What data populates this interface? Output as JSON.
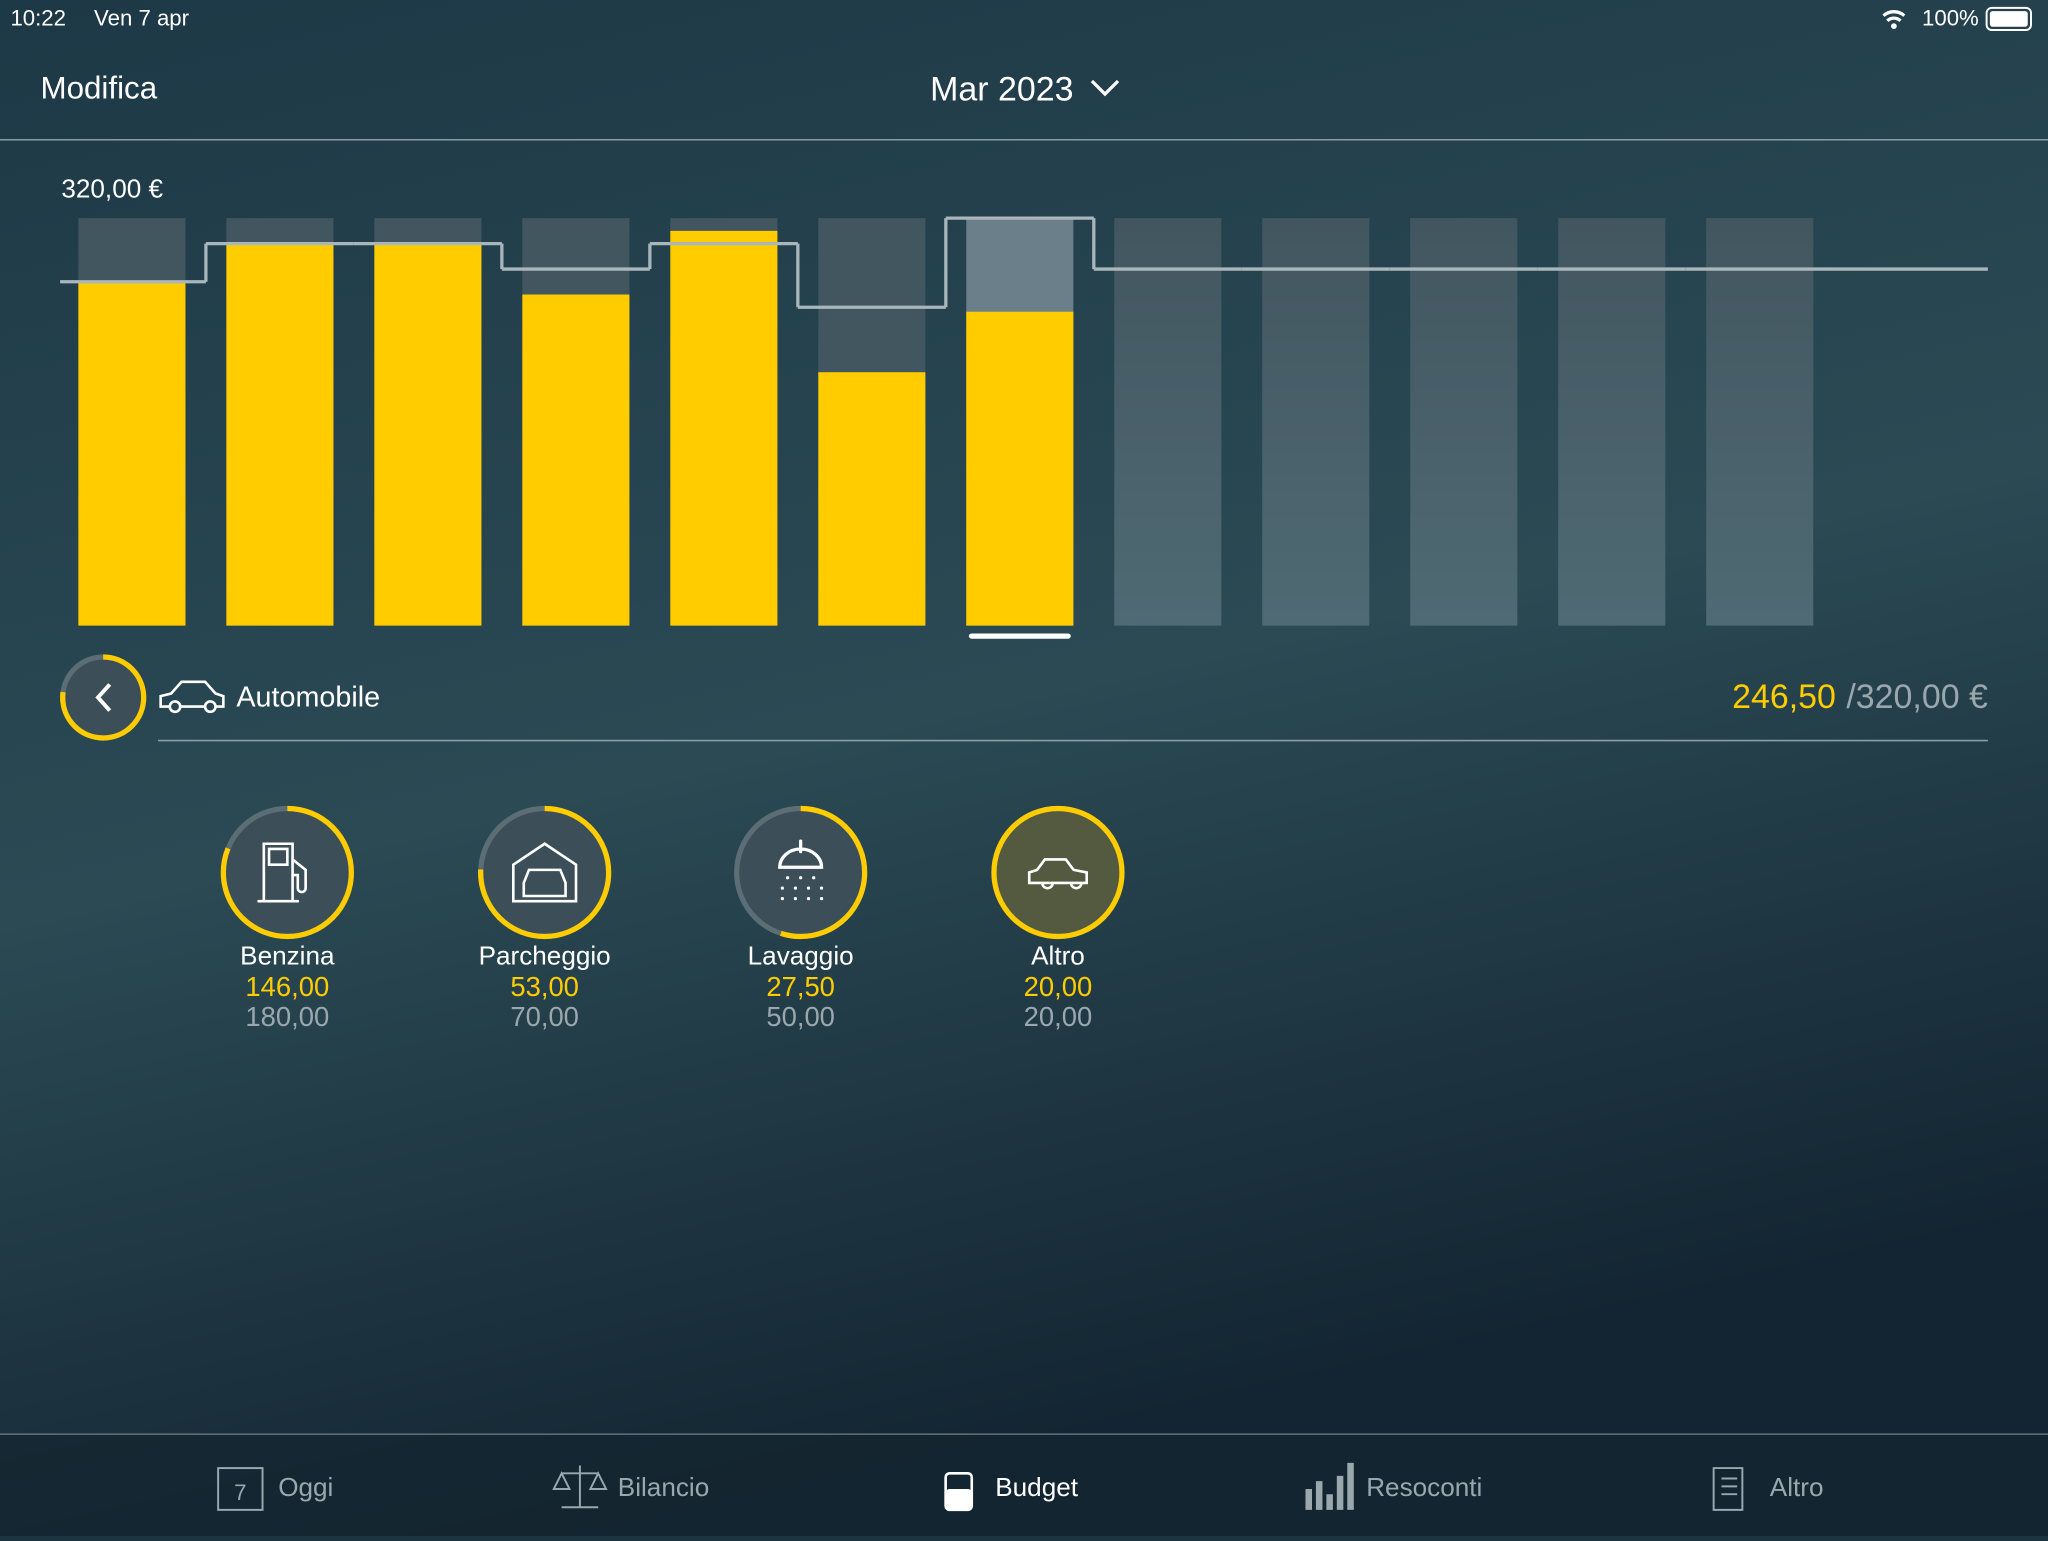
{
  "status_bar": {
    "time": "10:22",
    "date": "Ven 7 apr",
    "battery": "100%"
  },
  "nav": {
    "edit": "Modifica",
    "period": "Mar 2023"
  },
  "chart_data": {
    "type": "bar",
    "categories": [
      null,
      null,
      null,
      null,
      null,
      null,
      null,
      null,
      null,
      null,
      null,
      null
    ],
    "values": [
      270,
      300,
      300,
      260,
      310,
      199,
      246.5,
      null,
      null,
      null,
      null,
      null
    ],
    "budget": [
      270,
      300,
      300,
      280,
      300,
      250,
      320,
      280,
      280,
      280,
      280,
      280
    ],
    "color": "#ffcc00",
    "ylim": [
      0,
      320
    ],
    "yticks": [
      {
        "value": 320,
        "label": "320,00 €"
      }
    ],
    "selected_index": 6
  },
  "category": {
    "name": "Automobile",
    "spent": "246,50",
    "budget": "/320,00 €"
  },
  "subcategories": [
    {
      "name": "Benzina",
      "spent": "146,00",
      "budget": "180,00"
    },
    {
      "name": "Parcheggio",
      "spent": "53,00",
      "budget": "70,00"
    },
    {
      "name": "Lavaggio",
      "spent": "27,50",
      "budget": "50,00"
    },
    {
      "name": "Altro",
      "spent": "20,00",
      "budget": "20,00"
    }
  ],
  "tabs": [
    {
      "label": "Oggi",
      "icon_text": "7"
    },
    {
      "label": "Bilancio"
    },
    {
      "label": "Budget"
    },
    {
      "label": "Resoconti"
    },
    {
      "label": "Altro"
    }
  ]
}
